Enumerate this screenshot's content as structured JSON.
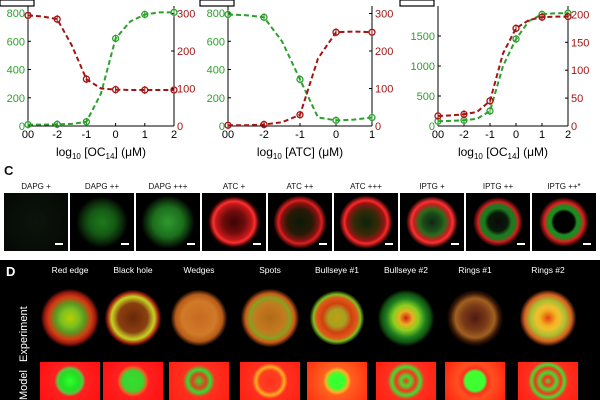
{
  "panel_C": {
    "letter": "C",
    "groups": [
      {
        "labels": [
          "DAPG +",
          "DAPG ++",
          "DAPG +++"
        ]
      },
      {
        "labels": [
          "ATC +",
          "ATC ++",
          "ATC +++"
        ]
      },
      {
        "labels": [
          "IPTG +",
          "IPTG ++",
          "IPTG ++*"
        ]
      }
    ]
  },
  "panel_D": {
    "letter": "D",
    "patterns": [
      "Red edge",
      "Black hole",
      "Wedges",
      "Spots",
      "Bullseye #1",
      "Bullseye #2",
      "Rings #1",
      "Rings #2"
    ],
    "row_labels": [
      "Experiment",
      "Model"
    ]
  },
  "chart_data": [
    {
      "type": "line",
      "xlabel_main": "log",
      "xlabel_sub": "10",
      "xlabel_rest": " [OC",
      "xlabel_sub2": "14",
      "xlabel_tail": "] (μM)",
      "x_ticks": [
        "00",
        "-2",
        "-1",
        "0",
        "1",
        "2"
      ],
      "y_left_ticks": [
        "0",
        "200",
        "400",
        "600",
        "800"
      ],
      "y_right_ticks": [
        "0",
        "100",
        "200",
        "300"
      ],
      "ylim_left": [
        0,
        850
      ],
      "ylim_right": [
        0,
        320
      ],
      "series": [
        {
          "axis": "left",
          "color": "#2ca02c",
          "x": [
            -3,
            -2.5,
            -2,
            -1.5,
            -1,
            -0.5,
            0,
            0.5,
            1,
            1.5,
            2
          ],
          "y": [
            10,
            10,
            12,
            15,
            30,
            230,
            620,
            740,
            790,
            805,
            805
          ]
        },
        {
          "axis": "right",
          "color": "#a31515",
          "x": [
            -3,
            -2.5,
            -2,
            -1.5,
            -1,
            -0.5,
            0,
            0.5,
            1,
            1.5,
            2
          ],
          "y": [
            295,
            292,
            285,
            215,
            125,
            100,
            97,
            96,
            96,
            96,
            96
          ]
        }
      ]
    },
    {
      "type": "line",
      "xlabel_main": "log",
      "xlabel_sub": "10",
      "xlabel_rest": " [ATC] (μM)",
      "xlabel_sub2": "",
      "xlabel_tail": "",
      "x_ticks": [
        "00",
        "-2",
        "-1",
        "0",
        "1"
      ],
      "y_left_ticks": [
        "0",
        "200",
        "400",
        "600",
        "800"
      ],
      "y_right_ticks": [
        "0",
        "100",
        "200",
        "300"
      ],
      "ylim_left": [
        0,
        850
      ],
      "ylim_right": [
        0,
        320
      ],
      "series": [
        {
          "axis": "left",
          "color": "#2ca02c",
          "x": [
            -3,
            -2.5,
            -2,
            -1.5,
            -1,
            -0.5,
            0,
            0.5,
            1
          ],
          "y": [
            790,
            785,
            770,
            600,
            330,
            60,
            40,
            45,
            60
          ]
        },
        {
          "axis": "right",
          "color": "#a31515",
          "x": [
            -3,
            -2.5,
            -2,
            -1.5,
            -1,
            -0.5,
            0,
            0.5,
            1
          ],
          "y": [
            2,
            2,
            4,
            10,
            30,
            180,
            250,
            252,
            250
          ]
        }
      ]
    },
    {
      "type": "line",
      "xlabel_main": "log",
      "xlabel_sub": "10",
      "xlabel_rest": " [OC",
      "xlabel_sub2": "14",
      "xlabel_tail": "] (μM)",
      "x_ticks": [
        "00",
        "-2",
        "-1",
        "0",
        "1",
        "2"
      ],
      "y_left_ticks": [
        "0",
        "500",
        "1000",
        "1500"
      ],
      "y_right_ticks": [
        "0",
        "50",
        "100",
        "150",
        "200"
      ],
      "ylim_left": [
        0,
        2000
      ],
      "ylim_right": [
        0,
        215
      ],
      "series": [
        {
          "axis": "left",
          "color": "#2ca02c",
          "x": [
            -3,
            -2.5,
            -2,
            -1.5,
            -1,
            -0.5,
            0,
            0.5,
            1,
            1.5,
            2
          ],
          "y": [
            80,
            85,
            95,
            120,
            250,
            1000,
            1450,
            1750,
            1860,
            1880,
            1880
          ]
        },
        {
          "axis": "right",
          "color": "#a31515",
          "x": [
            -3,
            -2.5,
            -2,
            -1.5,
            -1,
            -0.5,
            0,
            0.5,
            1,
            1.5,
            2
          ],
          "y": [
            18,
            19,
            21,
            25,
            45,
            130,
            175,
            190,
            195,
            196,
            196
          ]
        }
      ]
    }
  ]
}
